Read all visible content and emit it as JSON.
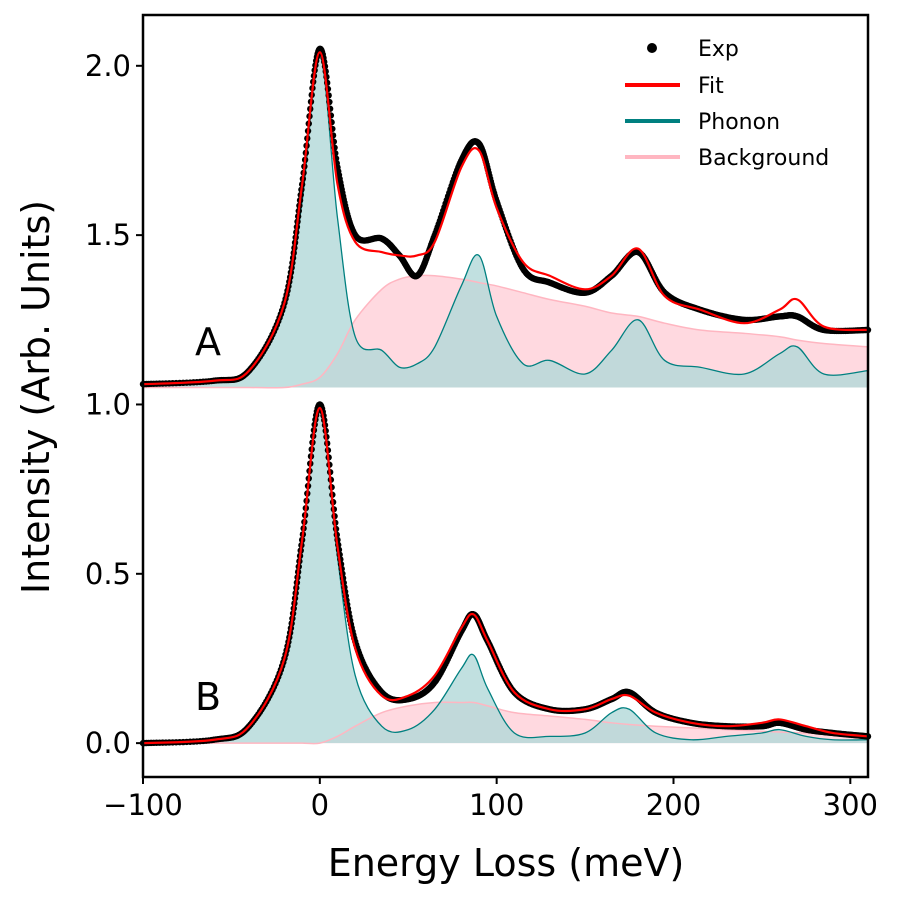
{
  "chart_data": {
    "type": "line",
    "xlabel": "Energy Loss (meV)",
    "ylabel": "Intensity (Arb. Units)",
    "xlim": [
      -100,
      310
    ],
    "ylim": [
      -0.1,
      2.15
    ],
    "x_ticks": [
      -100,
      0,
      100,
      200,
      300
    ],
    "x_tick_labels": [
      "−100",
      "0",
      "100",
      "200",
      "300"
    ],
    "y_ticks": [
      0.0,
      0.5,
      1.0,
      1.5,
      2.0
    ],
    "y_tick_labels": [
      "0.0",
      "0.5",
      "1.0",
      "1.5",
      "2.0"
    ],
    "grid": false,
    "legend_position": "top-right",
    "legend": [
      "Exp",
      "Fit",
      "Phonon",
      "Background"
    ],
    "colors": {
      "exp": "#000000",
      "fit": "#ff0000",
      "phonon": "#008080",
      "phonon_fill": "#b2d8d8",
      "background": "#ffb6c1",
      "background_fill": "#ffc0cb"
    },
    "panels": [
      {
        "label": "A",
        "baseline": 1.05,
        "x": [
          -100,
          -60,
          -40,
          -20,
          -10,
          0,
          10,
          20,
          35,
          45,
          55,
          65,
          80,
          90,
          100,
          115,
          130,
          150,
          165,
          180,
          195,
          215,
          240,
          260,
          270,
          285,
          310
        ],
        "series": [
          {
            "name": "Exp",
            "values": [
              1.06,
              1.07,
              1.1,
              1.3,
              1.65,
              2.05,
              1.7,
              1.5,
              1.49,
              1.44,
              1.38,
              1.5,
              1.72,
              1.77,
              1.6,
              1.4,
              1.36,
              1.33,
              1.38,
              1.45,
              1.33,
              1.28,
              1.25,
              1.26,
              1.26,
              1.22,
              1.22
            ]
          },
          {
            "name": "Fit",
            "values": [
              1.06,
              1.07,
              1.1,
              1.3,
              1.65,
              2.04,
              1.65,
              1.48,
              1.45,
              1.44,
              1.44,
              1.48,
              1.7,
              1.75,
              1.58,
              1.42,
              1.38,
              1.34,
              1.38,
              1.46,
              1.32,
              1.28,
              1.24,
              1.28,
              1.31,
              1.23,
              1.22
            ]
          },
          {
            "name": "Phonon",
            "values": [
              1.06,
              1.07,
              1.1,
              1.28,
              1.6,
              2.03,
              1.55,
              1.2,
              1.16,
              1.11,
              1.12,
              1.17,
              1.35,
              1.44,
              1.26,
              1.12,
              1.13,
              1.09,
              1.16,
              1.25,
              1.13,
              1.11,
              1.09,
              1.15,
              1.17,
              1.09,
              1.1
            ]
          },
          {
            "name": "Background",
            "values": [
              1.05,
              1.05,
              1.05,
              1.05,
              1.06,
              1.08,
              1.15,
              1.25,
              1.34,
              1.37,
              1.38,
              1.38,
              1.37,
              1.36,
              1.35,
              1.33,
              1.31,
              1.29,
              1.27,
              1.26,
              1.24,
              1.22,
              1.21,
              1.2,
              1.19,
              1.18,
              1.17
            ]
          }
        ]
      },
      {
        "label": "B",
        "baseline": 0.0,
        "x": [
          -100,
          -60,
          -40,
          -20,
          -10,
          0,
          10,
          20,
          35,
          50,
          65,
          80,
          87,
          95,
          110,
          130,
          150,
          165,
          175,
          190,
          210,
          230,
          250,
          260,
          275,
          290,
          310
        ],
        "series": [
          {
            "name": "Exp",
            "values": [
              0.0,
              0.01,
              0.05,
              0.25,
              0.6,
              1.0,
              0.6,
              0.3,
              0.15,
              0.13,
              0.18,
              0.33,
              0.38,
              0.3,
              0.15,
              0.1,
              0.1,
              0.13,
              0.15,
              0.09,
              0.06,
              0.05,
              0.05,
              0.06,
              0.04,
              0.03,
              0.02
            ]
          },
          {
            "name": "Fit",
            "values": [
              0.0,
              0.01,
              0.05,
              0.25,
              0.6,
              0.99,
              0.58,
              0.28,
              0.14,
              0.14,
              0.2,
              0.34,
              0.38,
              0.3,
              0.15,
              0.1,
              0.1,
              0.13,
              0.14,
              0.09,
              0.06,
              0.05,
              0.06,
              0.07,
              0.05,
              0.03,
              0.02
            ]
          },
          {
            "name": "Phonon",
            "values": [
              0.0,
              0.01,
              0.05,
              0.25,
              0.6,
              0.99,
              0.55,
              0.2,
              0.05,
              0.04,
              0.1,
              0.22,
              0.26,
              0.16,
              0.03,
              0.02,
              0.03,
              0.09,
              0.1,
              0.03,
              0.01,
              0.02,
              0.03,
              0.04,
              0.02,
              0.01,
              0.01
            ]
          },
          {
            "name": "Background",
            "values": [
              0.0,
              0.0,
              0.0,
              0.0,
              0.0,
              0.0,
              0.02,
              0.05,
              0.09,
              0.11,
              0.12,
              0.12,
              0.12,
              0.11,
              0.09,
              0.08,
              0.07,
              0.06,
              0.055,
              0.05,
              0.045,
              0.04,
              0.035,
              0.033,
              0.03,
              0.028,
              0.025
            ]
          }
        ]
      }
    ]
  }
}
